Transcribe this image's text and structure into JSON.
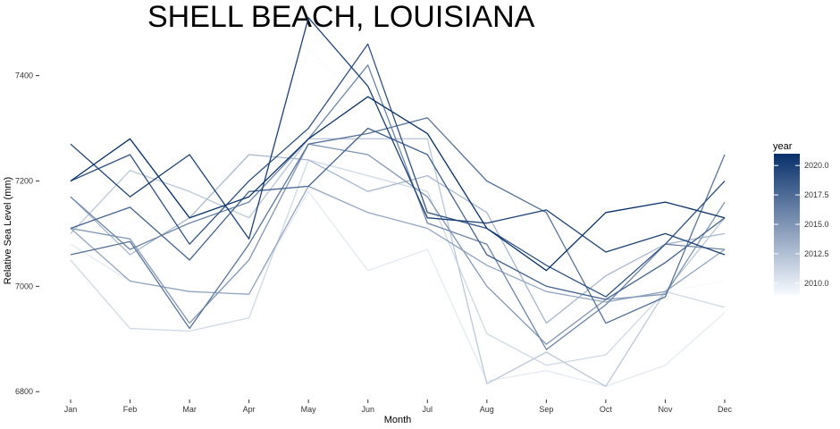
{
  "chart_data": {
    "type": "line",
    "title": "SHELL BEACH, LOUISIANA",
    "xlabel": "Month",
    "ylabel": "Relative Sea Level (mm)",
    "categories": [
      "Jan",
      "Feb",
      "Mar",
      "Apr",
      "May",
      "Jun",
      "Jul",
      "Aug",
      "Sep",
      "Oct",
      "Nov",
      "Dec"
    ],
    "ylim": [
      6780,
      7530
    ],
    "yticks": [
      6800,
      7000,
      7200,
      7400
    ],
    "grid": false,
    "legend": {
      "title": "year",
      "position": "right",
      "type": "colorbar",
      "range": [
        2009,
        2021
      ],
      "ticks": [
        "2010.0",
        "2012.5",
        "2015.0",
        "2017.5",
        "2020.0"
      ],
      "tick_values": [
        2010,
        2012.5,
        2015,
        2017.5,
        2020
      ],
      "color_low": "#f7fbff",
      "color_high": "#08306b"
    },
    "series": [
      {
        "year": 2009,
        "values": [
          7060,
          7120,
          7140,
          7130,
          7450,
          7340,
          7090,
          7070,
          7020,
          6960,
          6990,
          7010
        ]
      },
      {
        "year": 2010,
        "values": [
          7080,
          7010,
          6990,
          6985,
          7180,
          7030,
          7070,
          6820,
          6840,
          6810,
          6850,
          6950
        ]
      },
      {
        "year": 2011,
        "values": [
          7050,
          6920,
          6915,
          6940,
          7240,
          7210,
          7180,
          6910,
          6850,
          6870,
          6990,
          6960
        ]
      },
      {
        "year": 2012,
        "values": [
          7100,
          7220,
          7180,
          7130,
          7280,
          7280,
          7280,
          6815,
          6875,
          6810,
          6990,
          7130
        ]
      },
      {
        "year": 2013,
        "values": [
          7170,
          7060,
          7130,
          7250,
          7240,
          7180,
          7210,
          7140,
          6930,
          7020,
          7080,
          7100
        ]
      },
      {
        "year": 2014,
        "values": [
          7110,
          7010,
          6990,
          6985,
          7190,
          7140,
          7110,
          7040,
          6990,
          6970,
          6990,
          7070
        ]
      },
      {
        "year": 2015,
        "values": [
          7110,
          7090,
          6930,
          7050,
          7270,
          7250,
          7170,
          7000,
          6890,
          6975,
          6985,
          7160
        ]
      },
      {
        "year": 2016,
        "values": [
          7170,
          7070,
          7120,
          7160,
          7280,
          7420,
          7120,
          7080,
          6880,
          6965,
          7080,
          7070
        ]
      },
      {
        "year": 2017,
        "values": [
          7060,
          7085,
          6920,
          7080,
          7270,
          7290,
          7320,
          7200,
          7140,
          6930,
          6980,
          7250
        ]
      },
      {
        "year": 2018,
        "values": [
          7110,
          7150,
          7050,
          7180,
          7190,
          7300,
          7250,
          7060,
          7000,
          6975,
          7045,
          7130
        ]
      },
      {
        "year": 2019,
        "values": [
          7200,
          7250,
          7080,
          7200,
          7300,
          7460,
          7140,
          7110,
          7040,
          6980,
          7080,
          7200
        ]
      },
      {
        "year": 2020,
        "values": [
          7270,
          7170,
          7250,
          7090,
          7510,
          7380,
          7130,
          7120,
          7145,
          7065,
          7100,
          7060
        ]
      },
      {
        "year": 2021,
        "values": [
          7200,
          7280,
          7130,
          7170,
          7280,
          7360,
          7290,
          7110,
          7030,
          7140,
          7160,
          7130
        ]
      }
    ]
  }
}
